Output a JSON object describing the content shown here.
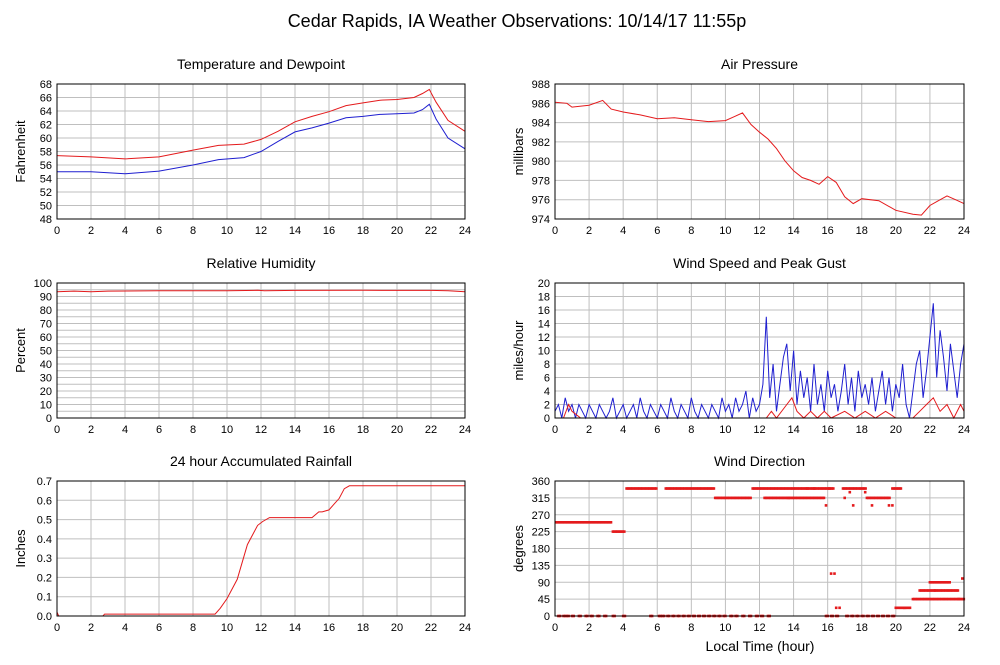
{
  "page_title": "Cedar Rapids, IA Weather Observations: 10/14/17 11:55p",
  "x_axis_label": "Local Time (hour)",
  "colors": {
    "red": "#e41a1c",
    "blue": "#1f1fd0",
    "grid": "#bfbfbf"
  },
  "chart_data": [
    {
      "id": "temp",
      "type": "line",
      "title": "Temperature and Dewpoint",
      "ylabel": "Fahrenheit",
      "xlim": [
        0,
        24
      ],
      "ylim": [
        48,
        68
      ],
      "yticks": [
        48,
        50,
        52,
        54,
        56,
        58,
        60,
        62,
        64,
        66,
        68
      ],
      "xticks": [
        0,
        2,
        4,
        6,
        8,
        10,
        12,
        14,
        16,
        18,
        20,
        22,
        24
      ],
      "grid": true,
      "series": [
        {
          "color": "#e41a1c",
          "x": [
            0,
            2,
            4,
            6,
            8,
            9.5,
            11,
            12,
            13,
            14,
            15,
            16,
            17,
            18,
            19,
            20,
            21,
            21.5,
            21.9,
            22.3,
            23,
            24
          ],
          "y": [
            57.4,
            57.2,
            56.9,
            57.2,
            58.2,
            58.9,
            59.1,
            59.8,
            61.0,
            62.4,
            63.2,
            63.9,
            64.8,
            65.2,
            65.6,
            65.7,
            66.0,
            66.6,
            67.2,
            65.3,
            62.6,
            61.0
          ]
        },
        {
          "color": "#1f1fd0",
          "x": [
            0,
            2,
            4,
            6,
            8,
            9.5,
            11,
            12,
            13,
            14,
            15,
            16,
            17,
            18,
            19,
            20,
            21,
            21.5,
            21.9,
            22.3,
            23,
            24
          ],
          "y": [
            55.0,
            55.0,
            54.7,
            55.1,
            56.0,
            56.8,
            57.1,
            58.0,
            59.5,
            60.9,
            61.5,
            62.2,
            63.0,
            63.2,
            63.5,
            63.6,
            63.7,
            64.2,
            65.0,
            62.8,
            60.0,
            58.4
          ]
        }
      ]
    },
    {
      "id": "pressure",
      "type": "line",
      "title": "Air Pressure",
      "ylabel": "millibars",
      "xlim": [
        0,
        24
      ],
      "ylim": [
        974,
        988
      ],
      "yticks": [
        974,
        976,
        978,
        980,
        982,
        984,
        986,
        988
      ],
      "xticks": [
        0,
        2,
        4,
        6,
        8,
        10,
        12,
        14,
        16,
        18,
        20,
        22,
        24
      ],
      "grid": true,
      "series": [
        {
          "color": "#e41a1c",
          "x": [
            0,
            0.7,
            1,
            2,
            2.8,
            3.3,
            4,
            5,
            6,
            7,
            8,
            9,
            10,
            10.5,
            11,
            11.5,
            12,
            12.5,
            13,
            13.5,
            14,
            14.5,
            15,
            15.5,
            16,
            16.5,
            17,
            17.5,
            18,
            19,
            20,
            21,
            21.5,
            22,
            22.5,
            23,
            23.5,
            24
          ],
          "y": [
            986.1,
            986.0,
            985.6,
            985.8,
            986.3,
            985.4,
            985.1,
            984.8,
            984.4,
            984.5,
            984.3,
            984.1,
            984.2,
            984.6,
            985.0,
            983.8,
            983.0,
            982.3,
            981.3,
            980.0,
            979.0,
            978.3,
            978.0,
            977.6,
            978.4,
            977.8,
            976.3,
            975.6,
            976.1,
            975.9,
            974.9,
            974.5,
            974.4,
            975.4,
            975.9,
            976.4,
            976.0,
            975.6
          ]
        }
      ]
    },
    {
      "id": "rh",
      "type": "line",
      "title": "Relative Humidity",
      "ylabel": "Percent",
      "xlim": [
        0,
        24
      ],
      "ylim": [
        0,
        100
      ],
      "yticks": [
        0,
        5,
        10,
        15,
        20,
        25,
        30,
        35,
        40,
        45,
        50,
        55,
        60,
        65,
        70,
        75,
        80,
        85,
        90,
        95,
        100
      ],
      "yticklabels": [
        0,
        10,
        20,
        30,
        40,
        50,
        60,
        70,
        80,
        90,
        100
      ],
      "xticks": [
        0,
        2,
        4,
        6,
        8,
        10,
        12,
        14,
        16,
        18,
        20,
        22,
        24
      ],
      "grid": true,
      "series": [
        {
          "color": "#e41a1c",
          "x": [
            0,
            1,
            2,
            3,
            6,
            10,
            11.8,
            12.2,
            14,
            18,
            22,
            23,
            24
          ],
          "y": [
            93.5,
            94.0,
            93.5,
            94.0,
            94.2,
            94.2,
            94.6,
            94.2,
            94.5,
            94.6,
            94.5,
            94.2,
            93.5
          ]
        }
      ]
    },
    {
      "id": "wind",
      "type": "line",
      "title": "Wind Speed and Peak Gust",
      "ylabel": "miles/hour",
      "xlim": [
        0,
        24
      ],
      "ylim": [
        0,
        20
      ],
      "yticks": [
        0,
        2,
        4,
        6,
        8,
        10,
        12,
        14,
        16,
        18,
        20
      ],
      "xticks": [
        0,
        2,
        4,
        6,
        8,
        10,
        12,
        14,
        16,
        18,
        20,
        22,
        24
      ],
      "grid": true,
      "series": [
        {
          "color": "#1f1fd0",
          "x": [
            0,
            0.2,
            0.4,
            0.6,
            0.8,
            1.0,
            1.2,
            1.4,
            1.6,
            1.8,
            2.0,
            2.2,
            2.4,
            2.6,
            2.8,
            3.0,
            3.2,
            3.4,
            3.6,
            3.8,
            4.0,
            4.2,
            4.4,
            4.6,
            4.8,
            5.0,
            5.2,
            5.4,
            5.6,
            5.8,
            6.0,
            6.2,
            6.4,
            6.6,
            6.8,
            7.0,
            7.2,
            7.4,
            7.6,
            7.8,
            8.0,
            8.2,
            8.4,
            8.6,
            8.8,
            9.0,
            9.2,
            9.4,
            9.6,
            9.8,
            10.0,
            10.2,
            10.4,
            10.6,
            10.8,
            11.0,
            11.2,
            11.4,
            11.6,
            11.8,
            12.0,
            12.2,
            12.4,
            12.6,
            12.8,
            13.0,
            13.2,
            13.4,
            13.6,
            13.8,
            14.0,
            14.2,
            14.4,
            14.6,
            14.8,
            15.0,
            15.2,
            15.4,
            15.6,
            15.8,
            16.0,
            16.2,
            16.4,
            16.6,
            16.8,
            17.0,
            17.2,
            17.4,
            17.6,
            17.8,
            18.0,
            18.2,
            18.4,
            18.6,
            18.8,
            19.0,
            19.2,
            19.4,
            19.6,
            19.8,
            20.0,
            20.2,
            20.4,
            20.6,
            20.8,
            21.0,
            21.2,
            21.4,
            21.6,
            21.8,
            22.0,
            22.2,
            22.4,
            22.6,
            22.8,
            23.0,
            23.2,
            23.4,
            23.6,
            23.8,
            24.0
          ],
          "y": [
            1,
            2,
            0,
            3,
            1,
            2,
            0,
            2,
            1,
            0,
            2,
            1,
            0,
            2,
            1,
            0,
            1,
            3,
            0,
            1,
            2,
            0,
            1,
            2,
            0,
            3,
            1,
            0,
            2,
            1,
            0,
            2,
            1,
            0,
            3,
            1,
            0,
            2,
            1,
            0,
            3,
            1,
            0,
            2,
            1,
            0,
            2,
            1,
            0,
            3,
            1,
            2,
            0,
            3,
            1,
            2,
            4,
            0,
            3,
            1,
            2,
            5,
            15,
            3,
            8,
            1,
            5,
            9,
            11,
            4,
            10,
            2,
            7,
            3,
            6,
            1,
            8,
            2,
            5,
            1,
            7,
            3,
            5,
            1,
            4,
            8,
            2,
            6,
            1,
            7,
            3,
            5,
            2,
            6,
            1,
            4,
            7,
            2,
            6,
            1,
            5,
            3,
            8,
            2,
            0,
            4,
            8,
            10,
            3,
            7,
            12,
            17,
            6,
            13,
            9,
            4,
            11,
            7,
            3,
            8,
            11
          ]
        },
        {
          "color": "#e41a1c",
          "x": [
            0,
            0.5,
            0.8,
            1.0,
            1.5,
            12.4,
            12.7,
            13.0,
            13.6,
            13.9,
            14.2,
            14.6,
            15.0,
            15.4,
            15.8,
            16.2,
            17.0,
            17.6,
            18.2,
            18.8,
            19.4,
            20.0,
            21.0,
            21.4,
            21.8,
            22.2,
            22.6,
            23.0,
            23.4,
            23.8,
            24.0
          ],
          "y": [
            0,
            0,
            2,
            1,
            0,
            0,
            1,
            0,
            2,
            3,
            1,
            0,
            1,
            0,
            1,
            0,
            1,
            0,
            1,
            0,
            1,
            0,
            0,
            1,
            2,
            3,
            1,
            2,
            0,
            2,
            1
          ]
        }
      ]
    },
    {
      "id": "rain",
      "type": "line",
      "title": "24 hour Accumulated Rainfall",
      "ylabel": "Inches",
      "xlim": [
        0,
        24
      ],
      "ylim": [
        0,
        0.7
      ],
      "yticks": [
        0,
        0.1,
        0.2,
        0.3,
        0.4,
        0.5,
        0.6,
        0.7
      ],
      "yticklabels": [
        "0.0",
        "0.1",
        "0.2",
        "0.3",
        "0.4",
        "0.5",
        "0.6",
        "0.7"
      ],
      "xticks": [
        0,
        2,
        4,
        6,
        8,
        10,
        12,
        14,
        16,
        18,
        20,
        22,
        24
      ],
      "grid": true,
      "series": [
        {
          "color": "#e41a1c",
          "x": [
            0,
            0.1,
            2.7,
            2.8,
            9.3,
            9.6,
            10.0,
            10.3,
            10.6,
            10.8,
            11.0,
            11.2,
            11.5,
            11.8,
            12.1,
            12.5,
            13.0,
            14.0,
            15.0,
            15.4,
            15.6,
            16.0,
            16.3,
            16.6,
            16.9,
            17.2,
            18.0,
            20.0,
            22.0,
            24.0
          ],
          "y": [
            0.02,
            0.0,
            0.0,
            0.01,
            0.01,
            0.04,
            0.09,
            0.14,
            0.19,
            0.25,
            0.31,
            0.37,
            0.42,
            0.47,
            0.49,
            0.51,
            0.51,
            0.51,
            0.51,
            0.54,
            0.54,
            0.55,
            0.58,
            0.61,
            0.66,
            0.675,
            0.675,
            0.675,
            0.675,
            0.675
          ]
        }
      ]
    },
    {
      "id": "winddir",
      "type": "scatter",
      "title": "Wind Direction",
      "ylabel": "degrees",
      "xlim": [
        0,
        24
      ],
      "ylim": [
        0,
        360
      ],
      "yticks": [
        0,
        45,
        90,
        135,
        180,
        225,
        270,
        315,
        360
      ],
      "xticks": [
        0,
        2,
        4,
        6,
        8,
        10,
        12,
        14,
        16,
        18,
        20,
        22,
        24
      ],
      "grid": true,
      "segments": [
        {
          "color": "#e41a1c",
          "x0": 0.05,
          "x1": 3.3,
          "y": 250
        },
        {
          "color": "#e41a1c",
          "x0": 3.4,
          "x1": 4.1,
          "y": 225
        },
        {
          "color": "#e41a1c",
          "x0": 4.2,
          "x1": 6.0,
          "y": 340
        },
        {
          "color": "#e41a1c",
          "x0": 6.5,
          "x1": 9.4,
          "y": 340
        },
        {
          "color": "#e41a1c",
          "x0": 9.4,
          "x1": 11.5,
          "y": 315
        },
        {
          "color": "#e41a1c",
          "x0": 11.6,
          "x1": 16.4,
          "y": 340
        },
        {
          "color": "#e41a1c",
          "x0": 12.3,
          "x1": 15.8,
          "y": 315
        },
        {
          "color": "#e41a1c",
          "x0": 16.9,
          "x1": 18.3,
          "y": 340
        },
        {
          "color": "#e41a1c",
          "x0": 18.3,
          "x1": 19.7,
          "y": 315
        },
        {
          "color": "#e41a1c",
          "x0": 19.8,
          "x1": 20.3,
          "y": 340
        },
        {
          "color": "#e41a1c",
          "x0": 20.0,
          "x1": 20.9,
          "y": 22
        },
        {
          "color": "#e41a1c",
          "x0": 21.0,
          "x1": 24.0,
          "y": 45
        },
        {
          "color": "#e41a1c",
          "x0": 21.4,
          "x1": 23.7,
          "y": 68
        },
        {
          "color": "#e41a1c",
          "x0": 22.0,
          "x1": 23.2,
          "y": 90
        }
      ],
      "zero_points": [
        0.2,
        0.5,
        0.7,
        1.0,
        1.4,
        1.8,
        2.1,
        2.5,
        2.9,
        3.4,
        4.0,
        5.6,
        6.1,
        6.3,
        6.6,
        6.9,
        7.2,
        7.5,
        7.8,
        8.1,
        8.4,
        8.7,
        9.0,
        9.3,
        9.6,
        9.9,
        10.3,
        10.6,
        11.0,
        11.4,
        11.8,
        12.1,
        12.5,
        15.9,
        16.2,
        16.5,
        17.1,
        17.4,
        17.7,
        18.0,
        18.3,
        18.6,
        18.9,
        19.2,
        19.5,
        19.8
      ],
      "scatter_points": [
        {
          "x": 15.9,
          "y": 295
        },
        {
          "x": 16.2,
          "y": 113
        },
        {
          "x": 16.4,
          "y": 113
        },
        {
          "x": 16.5,
          "y": 22
        },
        {
          "x": 16.7,
          "y": 22
        },
        {
          "x": 17.3,
          "y": 330
        },
        {
          "x": 17.5,
          "y": 295
        },
        {
          "x": 18.6,
          "y": 295
        },
        {
          "x": 19.6,
          "y": 295
        },
        {
          "x": 19.8,
          "y": 295
        },
        {
          "x": 23.9,
          "y": 100
        },
        {
          "x": 23.7,
          "y": 45
        },
        {
          "x": 15.2,
          "y": 340
        },
        {
          "x": 14.8,
          "y": 340
        },
        {
          "x": 13.7,
          "y": 315
        },
        {
          "x": 16.1,
          "y": 340
        },
        {
          "x": 17.0,
          "y": 315
        },
        {
          "x": 18.2,
          "y": 330
        },
        {
          "x": 20.5,
          "y": 22
        },
        {
          "x": 22.3,
          "y": 68
        }
      ]
    }
  ]
}
